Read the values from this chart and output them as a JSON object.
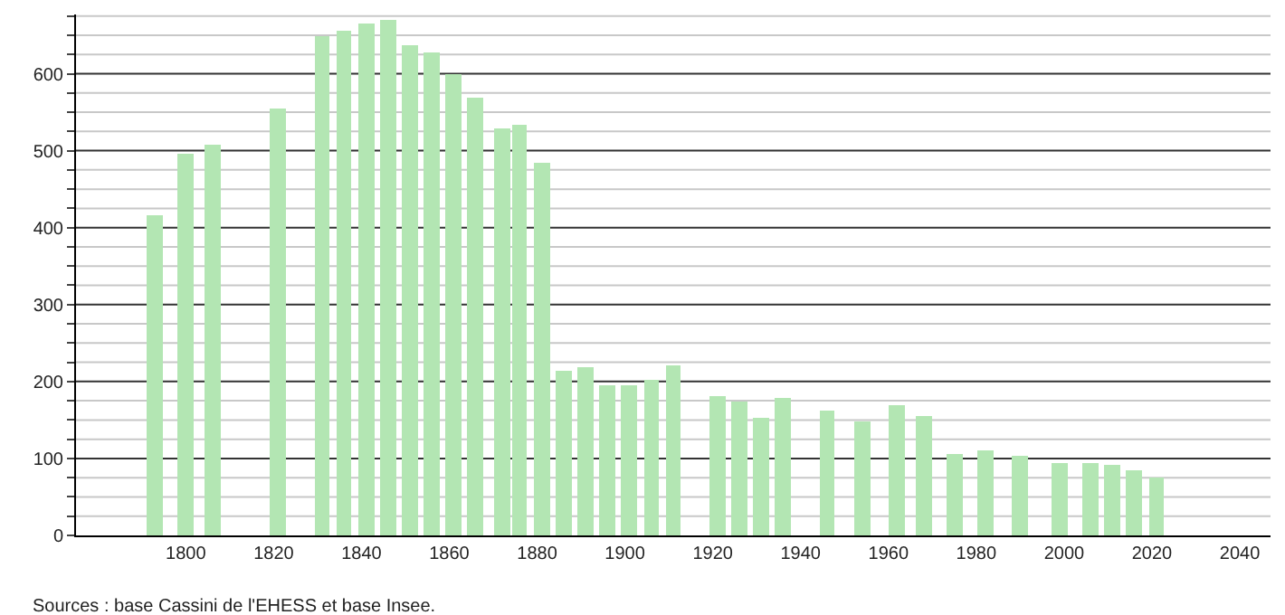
{
  "chart_data": {
    "type": "bar",
    "x": [
      1793,
      1800,
      1806,
      1821,
      1831,
      1836,
      1841,
      1846,
      1851,
      1856,
      1861,
      1866,
      1872,
      1876,
      1881,
      1886,
      1891,
      1896,
      1901,
      1906,
      1911,
      1921,
      1926,
      1931,
      1936,
      1946,
      1954,
      1962,
      1968,
      1975,
      1982,
      1990,
      1999,
      2006,
      2011,
      2016,
      2021
    ],
    "values": [
      416,
      496,
      507,
      555,
      648,
      657,
      665,
      669,
      636,
      627,
      600,
      568,
      528,
      534,
      484,
      213,
      218,
      196,
      195,
      202,
      220,
      182,
      174,
      153,
      178,
      162,
      149,
      170,
      156,
      106,
      110,
      103,
      94,
      94,
      91,
      84,
      76
    ],
    "color": "#b3e6b3",
    "xlim": [
      1775,
      2047
    ],
    "xticks": [
      1800,
      1820,
      1840,
      1860,
      1880,
      1900,
      1920,
      1940,
      1960,
      1980,
      2000,
      2020,
      2040
    ],
    "ylim": [
      0,
      677
    ],
    "yticks": [
      0,
      {
        "value": 25,
        "label": null
      },
      {
        "value": 50,
        "label": null
      },
      {
        "value": 75,
        "label": null
      },
      100,
      {
        "value": 125,
        "label": null
      },
      {
        "value": 150,
        "label": null
      },
      {
        "value": 175,
        "label": null
      },
      200,
      {
        "value": 225,
        "label": null
      },
      {
        "value": 250,
        "label": null
      },
      {
        "value": 275,
        "label": null
      },
      300,
      {
        "value": 325,
        "label": null
      },
      {
        "value": 350,
        "label": null
      },
      {
        "value": 375,
        "label": null
      },
      400,
      {
        "value": 425,
        "label": null
      },
      {
        "value": 450,
        "label": null
      },
      {
        "value": 475,
        "label": null
      },
      500,
      {
        "value": 525,
        "label": null
      },
      {
        "value": 550,
        "label": null
      },
      {
        "value": 575,
        "label": null
      },
      600,
      {
        "value": 625,
        "label": null
      },
      {
        "value": 650,
        "label": null
      },
      {
        "value": 675,
        "label": null
      }
    ],
    "grid": "y",
    "annotations": [
      "Sources : base Cassini de l'EHESS et base Insee."
    ]
  }
}
